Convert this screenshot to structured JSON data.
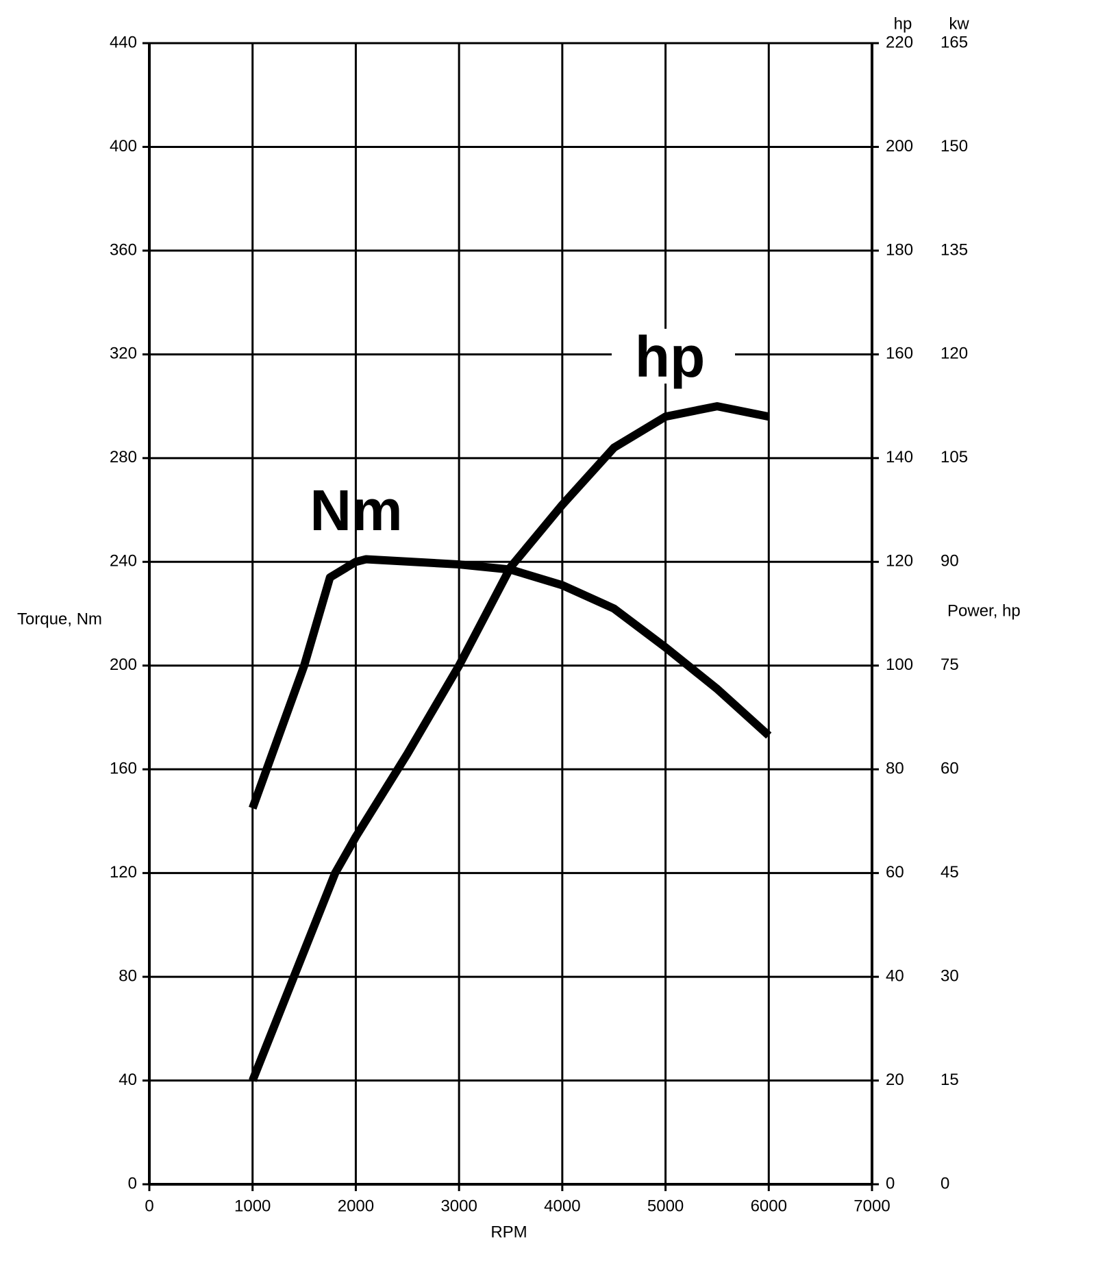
{
  "chart_data": {
    "type": "line",
    "x_label": "RPM",
    "y_label": "Torque, Nm",
    "y2_label": "Power, hp",
    "y2_unit": "hp",
    "y3_unit": "kw",
    "annotations": [
      "Nm",
      "hp"
    ],
    "xlim": [
      0,
      7000
    ],
    "xticks": [
      0,
      1000,
      2000,
      3000,
      4000,
      5000,
      6000,
      7000
    ],
    "ylim": [
      0,
      440
    ],
    "yticks": [
      0,
      40,
      80,
      120,
      160,
      200,
      240,
      280,
      320,
      360,
      400,
      440
    ],
    "y2lim": [
      0,
      220
    ],
    "y2ticks": [
      0,
      20,
      40,
      60,
      80,
      100,
      120,
      140,
      160,
      180,
      200,
      220
    ],
    "y3lim": [
      0,
      165
    ],
    "y3ticks": [
      0,
      15,
      30,
      45,
      60,
      75,
      90,
      105,
      120,
      135,
      150,
      165
    ],
    "grid": true,
    "series": [
      {
        "name": "Nm",
        "color": "#000000",
        "x": [
          1000,
          1500,
          1750,
          2000,
          2100,
          3000,
          3500,
          4000,
          4500,
          5000,
          5500,
          6000
        ],
        "values": [
          145,
          200,
          234,
          240,
          241,
          239,
          237,
          231,
          222,
          207,
          191,
          173
        ]
      },
      {
        "name": "hp",
        "color": "#000000",
        "axis": "y2",
        "x": [
          1000,
          1500,
          1800,
          2000,
          2500,
          3000,
          3500,
          4000,
          4500,
          5000,
          5500,
          6000
        ],
        "values": [
          20,
          45,
          60,
          67,
          83,
          100,
          119,
          131,
          142,
          148,
          150,
          148
        ]
      }
    ]
  }
}
